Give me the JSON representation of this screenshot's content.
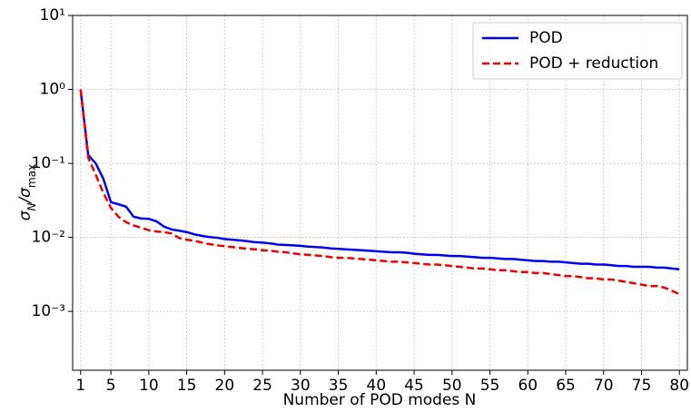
{
  "chart_data": {
    "type": "line",
    "xlabel": "Number of POD modes N",
    "ylabel": [
      "σ",
      "N",
      "/σ",
      "max"
    ],
    "x": [
      1,
      2,
      3,
      4,
      5,
      6,
      7,
      8,
      9,
      10,
      11,
      12,
      13,
      14,
      15,
      16,
      17,
      18,
      19,
      20,
      21,
      22,
      23,
      24,
      25,
      26,
      27,
      28,
      29,
      30,
      31,
      32,
      33,
      34,
      35,
      36,
      37,
      38,
      39,
      40,
      41,
      42,
      43,
      44,
      45,
      46,
      47,
      48,
      49,
      50,
      51,
      52,
      53,
      54,
      55,
      56,
      57,
      58,
      59,
      60,
      61,
      62,
      63,
      64,
      65,
      66,
      67,
      68,
      69,
      70,
      71,
      72,
      73,
      74,
      75,
      76,
      77,
      78,
      79,
      80
    ],
    "series": [
      {
        "name": "POD",
        "color": "#0000ee",
        "dash": "solid",
        "values": [
          1.0,
          0.13,
          0.1,
          0.062,
          0.03,
          0.028,
          0.026,
          0.019,
          0.018,
          0.0178,
          0.0165,
          0.014,
          0.0128,
          0.0123,
          0.0118,
          0.011,
          0.0105,
          0.0101,
          0.0099,
          0.0095,
          0.0093,
          0.0091,
          0.0089,
          0.0086,
          0.0085,
          0.0083,
          0.008,
          0.0079,
          0.0078,
          0.0077,
          0.0075,
          0.0074,
          0.0073,
          0.0071,
          0.007,
          0.0069,
          0.0068,
          0.0067,
          0.0066,
          0.0065,
          0.0064,
          0.0063,
          0.0063,
          0.0062,
          0.006,
          0.0059,
          0.0058,
          0.0058,
          0.0057,
          0.0056,
          0.0056,
          0.0055,
          0.0054,
          0.0053,
          0.0053,
          0.0052,
          0.0051,
          0.0051,
          0.005,
          0.0049,
          0.0048,
          0.0048,
          0.0047,
          0.0047,
          0.0046,
          0.0045,
          0.0044,
          0.0044,
          0.0043,
          0.0043,
          0.0042,
          0.0041,
          0.0041,
          0.004,
          0.004,
          0.004,
          0.0039,
          0.0039,
          0.0038,
          0.0037
        ]
      },
      {
        "name": "POD + reduction",
        "color": "#ee0000",
        "dash": "dashed",
        "values": [
          1.0,
          0.12,
          0.07,
          0.04,
          0.025,
          0.019,
          0.016,
          0.0145,
          0.0135,
          0.0125,
          0.012,
          0.0118,
          0.0113,
          0.0098,
          0.0093,
          0.009,
          0.0085,
          0.0081,
          0.0078,
          0.0076,
          0.0074,
          0.0072,
          0.007,
          0.0069,
          0.0067,
          0.0066,
          0.0064,
          0.0063,
          0.0061,
          0.0059,
          0.0058,
          0.0057,
          0.0056,
          0.0054,
          0.0053,
          0.0053,
          0.0052,
          0.0051,
          0.005,
          0.0049,
          0.0048,
          0.0047,
          0.0047,
          0.0046,
          0.0045,
          0.0044,
          0.0043,
          0.0043,
          0.0042,
          0.0041,
          0.004,
          0.0039,
          0.0038,
          0.0038,
          0.0037,
          0.0036,
          0.0036,
          0.0035,
          0.0034,
          0.0034,
          0.0033,
          0.0033,
          0.0032,
          0.0031,
          0.003,
          0.003,
          0.0029,
          0.0028,
          0.0028,
          0.0027,
          0.0027,
          0.0026,
          0.0025,
          0.0024,
          0.0023,
          0.0022,
          0.0022,
          0.0021,
          0.0019,
          0.0017
        ]
      }
    ],
    "xlim": [
      -0.05,
      81.05
    ],
    "xticks": [
      1,
      5,
      10,
      15,
      20,
      25,
      30,
      35,
      40,
      45,
      50,
      55,
      60,
      65,
      70,
      75,
      80
    ],
    "ylim": [
      0.00016,
      10
    ],
    "yscale": "log",
    "yticks": [
      {
        "value": 10,
        "label": "10¹"
      },
      {
        "value": 1,
        "label": "10⁰"
      },
      {
        "value": 0.1,
        "label": "10⁻¹"
      },
      {
        "value": 0.01,
        "label": "10⁻²"
      },
      {
        "value": 0.001,
        "label": "10⁻³"
      }
    ],
    "grid": true,
    "legend": "upper-right"
  }
}
